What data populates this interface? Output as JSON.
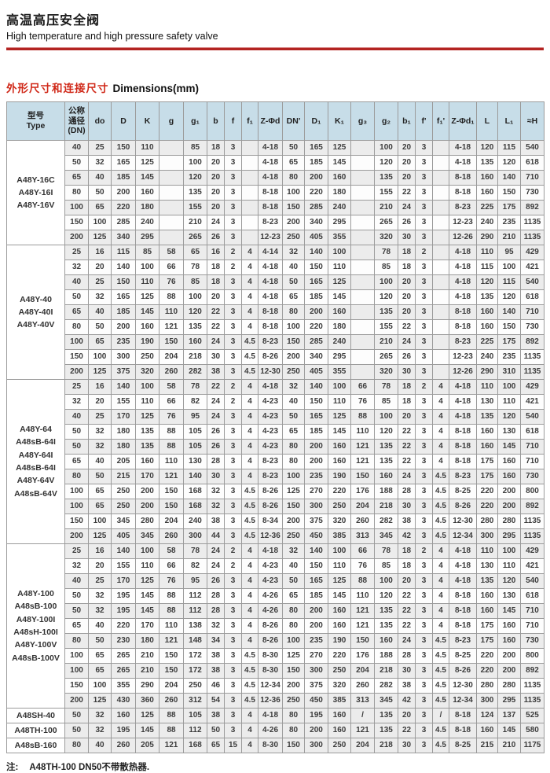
{
  "page": {
    "title_zh": "高温高压安全阀",
    "title_en": "High temperature and high pressure safety valve",
    "section_title_zh": "外形尺寸和连接尺寸",
    "section_title_en": "Dimensions(mm)",
    "colors": {
      "accent_red_rule": "#b32422",
      "section_red": "#d02818",
      "table_header_bg": "#c7dde8",
      "row_stripe": "#ececec",
      "border": "#9b9b9b"
    }
  },
  "note": {
    "label": "注:",
    "text": "A48TH-100  DN50不带散热器."
  },
  "table": {
    "headers": [
      "型号\nType",
      "公称\n通径\n(DN)",
      "do",
      "D",
      "K",
      "g",
      "g₁",
      "b",
      "f",
      "f₁",
      "Z-Φd",
      "DN'",
      "D₁",
      "K₁",
      "g₃",
      "g₂",
      "b₁",
      "f'",
      "f₁'",
      "Z-Φd₁",
      "L",
      "L₁",
      "≈H"
    ],
    "groups": [
      {
        "type": "A48Y-16C\nA48Y-16I\nA48Y-16V",
        "rows": [
          [
            "40",
            "25",
            "150",
            "110",
            "",
            "85",
            "18",
            "3",
            "",
            "4-18",
            "50",
            "165",
            "125",
            "",
            "100",
            "20",
            "3",
            "",
            "4-18",
            "120",
            "115",
            "540"
          ],
          [
            "50",
            "32",
            "165",
            "125",
            "",
            "100",
            "20",
            "3",
            "",
            "4-18",
            "65",
            "185",
            "145",
            "",
            "120",
            "20",
            "3",
            "",
            "4-18",
            "135",
            "120",
            "618"
          ],
          [
            "65",
            "40",
            "185",
            "145",
            "",
            "120",
            "20",
            "3",
            "",
            "4-18",
            "80",
            "200",
            "160",
            "",
            "135",
            "20",
            "3",
            "",
            "8-18",
            "160",
            "140",
            "710"
          ],
          [
            "80",
            "50",
            "200",
            "160",
            "",
            "135",
            "20",
            "3",
            "",
            "8-18",
            "100",
            "220",
            "180",
            "",
            "155",
            "22",
            "3",
            "",
            "8-18",
            "160",
            "150",
            "730"
          ],
          [
            "100",
            "65",
            "220",
            "180",
            "",
            "155",
            "20",
            "3",
            "",
            "8-18",
            "150",
            "285",
            "240",
            "",
            "210",
            "24",
            "3",
            "",
            "8-23",
            "225",
            "175",
            "892"
          ],
          [
            "150",
            "100",
            "285",
            "240",
            "",
            "210",
            "24",
            "3",
            "",
            "8-23",
            "200",
            "340",
            "295",
            "",
            "265",
            "26",
            "3",
            "",
            "12-23",
            "240",
            "235",
            "1135"
          ],
          [
            "200",
            "125",
            "340",
            "295",
            "",
            "265",
            "26",
            "3",
            "",
            "12-23",
            "250",
            "405",
            "355",
            "",
            "320",
            "30",
            "3",
            "",
            "12-26",
            "290",
            "210",
            "1135"
          ]
        ]
      },
      {
        "type": "A48Y-40\nA48Y-40I\nA48Y-40V",
        "rows": [
          [
            "25",
            "16",
            "115",
            "85",
            "58",
            "65",
            "16",
            "2",
            "4",
            "4-14",
            "32",
            "140",
            "100",
            "",
            "78",
            "18",
            "2",
            "",
            "4-18",
            "110",
            "95",
            "429"
          ],
          [
            "32",
            "20",
            "140",
            "100",
            "66",
            "78",
            "18",
            "2",
            "4",
            "4-18",
            "40",
            "150",
            "110",
            "",
            "85",
            "18",
            "3",
            "",
            "4-18",
            "115",
            "100",
            "421"
          ],
          [
            "40",
            "25",
            "150",
            "110",
            "76",
            "85",
            "18",
            "3",
            "4",
            "4-18",
            "50",
            "165",
            "125",
            "",
            "100",
            "20",
            "3",
            "",
            "4-18",
            "120",
            "115",
            "540"
          ],
          [
            "50",
            "32",
            "165",
            "125",
            "88",
            "100",
            "20",
            "3",
            "4",
            "4-18",
            "65",
            "185",
            "145",
            "",
            "120",
            "20",
            "3",
            "",
            "4-18",
            "135",
            "120",
            "618"
          ],
          [
            "65",
            "40",
            "185",
            "145",
            "110",
            "120",
            "22",
            "3",
            "4",
            "8-18",
            "80",
            "200",
            "160",
            "",
            "135",
            "20",
            "3",
            "",
            "8-18",
            "160",
            "140",
            "710"
          ],
          [
            "80",
            "50",
            "200",
            "160",
            "121",
            "135",
            "22",
            "3",
            "4",
            "8-18",
            "100",
            "220",
            "180",
            "",
            "155",
            "22",
            "3",
            "",
            "8-18",
            "160",
            "150",
            "730"
          ],
          [
            "100",
            "65",
            "235",
            "190",
            "150",
            "160",
            "24",
            "3",
            "4.5",
            "8-23",
            "150",
            "285",
            "240",
            "",
            "210",
            "24",
            "3",
            "",
            "8-23",
            "225",
            "175",
            "892"
          ],
          [
            "150",
            "100",
            "300",
            "250",
            "204",
            "218",
            "30",
            "3",
            "4.5",
            "8-26",
            "200",
            "340",
            "295",
            "",
            "265",
            "26",
            "3",
            "",
            "12-23",
            "240",
            "235",
            "1135"
          ],
          [
            "200",
            "125",
            "375",
            "320",
            "260",
            "282",
            "38",
            "3",
            "4.5",
            "12-30",
            "250",
            "405",
            "355",
            "",
            "320",
            "30",
            "3",
            "",
            "12-26",
            "290",
            "310",
            "1135"
          ]
        ]
      },
      {
        "type": "A48Y-64\nA48sB-64I\nA48Y-64I\nA48sB-64I\nA48Y-64V\nA48sB-64V",
        "rows": [
          [
            "25",
            "16",
            "140",
            "100",
            "58",
            "78",
            "22",
            "2",
            "4",
            "4-18",
            "32",
            "140",
            "100",
            "66",
            "78",
            "18",
            "2",
            "4",
            "4-18",
            "110",
            "100",
            "429"
          ],
          [
            "32",
            "20",
            "155",
            "110",
            "66",
            "82",
            "24",
            "2",
            "4",
            "4-23",
            "40",
            "150",
            "110",
            "76",
            "85",
            "18",
            "3",
            "4",
            "4-18",
            "130",
            "110",
            "421"
          ],
          [
            "40",
            "25",
            "170",
            "125",
            "76",
            "95",
            "24",
            "3",
            "4",
            "4-23",
            "50",
            "165",
            "125",
            "88",
            "100",
            "20",
            "3",
            "4",
            "4-18",
            "135",
            "120",
            "540"
          ],
          [
            "50",
            "32",
            "180",
            "135",
            "88",
            "105",
            "26",
            "3",
            "4",
            "4-23",
            "65",
            "185",
            "145",
            "110",
            "120",
            "22",
            "3",
            "4",
            "8-18",
            "160",
            "130",
            "618"
          ],
          [
            "50",
            "32",
            "180",
            "135",
            "88",
            "105",
            "26",
            "3",
            "4",
            "4-23",
            "80",
            "200",
            "160",
            "121",
            "135",
            "22",
            "3",
            "4",
            "8-18",
            "160",
            "145",
            "710"
          ],
          [
            "65",
            "40",
            "205",
            "160",
            "110",
            "130",
            "28",
            "3",
            "4",
            "8-23",
            "80",
            "200",
            "160",
            "121",
            "135",
            "22",
            "3",
            "4",
            "8-18",
            "175",
            "160",
            "710"
          ],
          [
            "80",
            "50",
            "215",
            "170",
            "121",
            "140",
            "30",
            "3",
            "4",
            "8-23",
            "100",
            "235",
            "190",
            "150",
            "160",
            "24",
            "3",
            "4.5",
            "8-23",
            "175",
            "160",
            "730"
          ],
          [
            "100",
            "65",
            "250",
            "200",
            "150",
            "168",
            "32",
            "3",
            "4.5",
            "8-26",
            "125",
            "270",
            "220",
            "176",
            "188",
            "28",
            "3",
            "4.5",
            "8-25",
            "220",
            "200",
            "800"
          ],
          [
            "100",
            "65",
            "250",
            "200",
            "150",
            "168",
            "32",
            "3",
            "4.5",
            "8-26",
            "150",
            "300",
            "250",
            "204",
            "218",
            "30",
            "3",
            "4.5",
            "8-26",
            "220",
            "200",
            "892"
          ],
          [
            "150",
            "100",
            "345",
            "280",
            "204",
            "240",
            "38",
            "3",
            "4.5",
            "8-34",
            "200",
            "375",
            "320",
            "260",
            "282",
            "38",
            "3",
            "4.5",
            "12-30",
            "280",
            "280",
            "1135"
          ],
          [
            "200",
            "125",
            "405",
            "345",
            "260",
            "300",
            "44",
            "3",
            "4.5",
            "12-36",
            "250",
            "450",
            "385",
            "313",
            "345",
            "42",
            "3",
            "4.5",
            "12-34",
            "300",
            "295",
            "1135"
          ]
        ]
      },
      {
        "type": "A48Y-100\nA48sB-100\nA48Y-100I\nA48sH-100I\nA48Y-100V\nA48sB-100V",
        "rows": [
          [
            "25",
            "16",
            "140",
            "100",
            "58",
            "78",
            "24",
            "2",
            "4",
            "4-18",
            "32",
            "140",
            "100",
            "66",
            "78",
            "18",
            "2",
            "4",
            "4-18",
            "110",
            "100",
            "429"
          ],
          [
            "32",
            "20",
            "155",
            "110",
            "66",
            "82",
            "24",
            "2",
            "4",
            "4-23",
            "40",
            "150",
            "110",
            "76",
            "85",
            "18",
            "3",
            "4",
            "4-18",
            "130",
            "110",
            "421"
          ],
          [
            "40",
            "25",
            "170",
            "125",
            "76",
            "95",
            "26",
            "3",
            "4",
            "4-23",
            "50",
            "165",
            "125",
            "88",
            "100",
            "20",
            "3",
            "4",
            "4-18",
            "135",
            "120",
            "540"
          ],
          [
            "50",
            "32",
            "195",
            "145",
            "88",
            "112",
            "28",
            "3",
            "4",
            "4-26",
            "65",
            "185",
            "145",
            "110",
            "120",
            "22",
            "3",
            "4",
            "8-18",
            "160",
            "130",
            "618"
          ],
          [
            "50",
            "32",
            "195",
            "145",
            "88",
            "112",
            "28",
            "3",
            "4",
            "4-26",
            "80",
            "200",
            "160",
            "121",
            "135",
            "22",
            "3",
            "4",
            "8-18",
            "160",
            "145",
            "710"
          ],
          [
            "65",
            "40",
            "220",
            "170",
            "110",
            "138",
            "32",
            "3",
            "4",
            "8-26",
            "80",
            "200",
            "160",
            "121",
            "135",
            "22",
            "3",
            "4",
            "8-18",
            "175",
            "160",
            "710"
          ],
          [
            "80",
            "50",
            "230",
            "180",
            "121",
            "148",
            "34",
            "3",
            "4",
            "8-26",
            "100",
            "235",
            "190",
            "150",
            "160",
            "24",
            "3",
            "4.5",
            "8-23",
            "175",
            "160",
            "730"
          ],
          [
            "100",
            "65",
            "265",
            "210",
            "150",
            "172",
            "38",
            "3",
            "4.5",
            "8-30",
            "125",
            "270",
            "220",
            "176",
            "188",
            "28",
            "3",
            "4.5",
            "8-25",
            "220",
            "200",
            "800"
          ],
          [
            "100",
            "65",
            "265",
            "210",
            "150",
            "172",
            "38",
            "3",
            "4.5",
            "8-30",
            "150",
            "300",
            "250",
            "204",
            "218",
            "30",
            "3",
            "4.5",
            "8-26",
            "220",
            "200",
            "892"
          ],
          [
            "150",
            "100",
            "355",
            "290",
            "204",
            "250",
            "46",
            "3",
            "4.5",
            "12-34",
            "200",
            "375",
            "320",
            "260",
            "282",
            "38",
            "3",
            "4.5",
            "12-30",
            "280",
            "280",
            "1135"
          ],
          [
            "200",
            "125",
            "430",
            "360",
            "260",
            "312",
            "54",
            "3",
            "4.5",
            "12-36",
            "250",
            "450",
            "385",
            "313",
            "345",
            "42",
            "3",
            "4.5",
            "12-34",
            "300",
            "295",
            "1135"
          ]
        ]
      },
      {
        "type": "A48SH-40",
        "rows": [
          [
            "50",
            "32",
            "160",
            "125",
            "88",
            "105",
            "38",
            "3",
            "4",
            "4-18",
            "80",
            "195",
            "160",
            "/",
            "135",
            "20",
            "3",
            "/",
            "8-18",
            "124",
            "137",
            "525"
          ]
        ]
      },
      {
        "type": "A48TH-100",
        "rows": [
          [
            "50",
            "32",
            "195",
            "145",
            "88",
            "112",
            "50",
            "3",
            "4",
            "4-26",
            "80",
            "200",
            "160",
            "121",
            "135",
            "22",
            "3",
            "4.5",
            "8-18",
            "160",
            "145",
            "580"
          ]
        ]
      },
      {
        "type": "A48sB-160",
        "rows": [
          [
            "80",
            "40",
            "260",
            "205",
            "121",
            "168",
            "65",
            "15",
            "4",
            "8-30",
            "150",
            "300",
            "250",
            "204",
            "218",
            "30",
            "3",
            "4.5",
            "8-25",
            "215",
            "210",
            "1175"
          ]
        ]
      }
    ]
  }
}
